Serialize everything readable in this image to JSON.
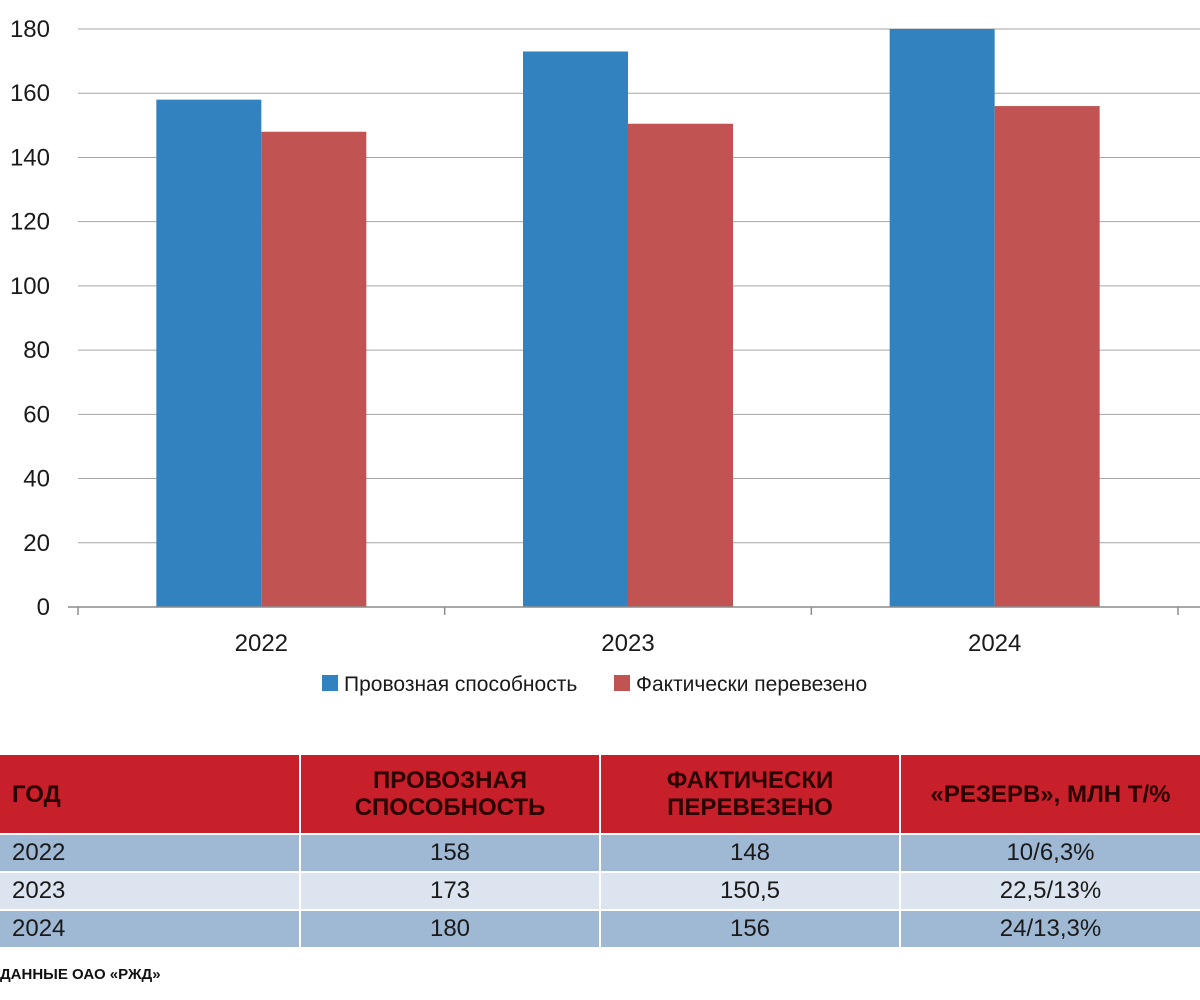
{
  "chart_data": {
    "type": "bar",
    "categories": [
      "2022",
      "2023",
      "2024"
    ],
    "series": [
      {
        "name": "Провозная способность",
        "color": "#3282c0",
        "values": [
          158,
          173,
          180
        ]
      },
      {
        "name": "Фактически перевезено",
        "color": "#c15452",
        "values": [
          148,
          150.5,
          156
        ]
      }
    ],
    "title": "",
    "xlabel": "",
    "ylabel": "",
    "ylim": [
      0,
      180
    ],
    "yticks": [
      0,
      20,
      40,
      60,
      80,
      100,
      120,
      140,
      160,
      180
    ],
    "grid": true,
    "legend": "bottom"
  },
  "table": {
    "headers": [
      "ГОД",
      "ПРОВОЗНАЯ СПОСОБНОСТЬ",
      "ФАКТИЧЕСКИ ПЕРЕВЕЗЕНО",
      "«РЕЗЕРВ», МЛН Т/%"
    ],
    "rows": [
      [
        "2022",
        "158",
        "148",
        "10/6,3%"
      ],
      [
        "2023",
        "173",
        "150,5",
        "22,5/13%"
      ],
      [
        "2024",
        "180",
        "156",
        "24/13,3%"
      ]
    ]
  },
  "source_note": "ДАННЫЕ ОАО «РЖД»",
  "colors": {
    "header_bg": "#c8202a",
    "row_dark": "#9fb8d3",
    "row_light": "#dbe4ef",
    "grid": "#a6a6a6"
  }
}
